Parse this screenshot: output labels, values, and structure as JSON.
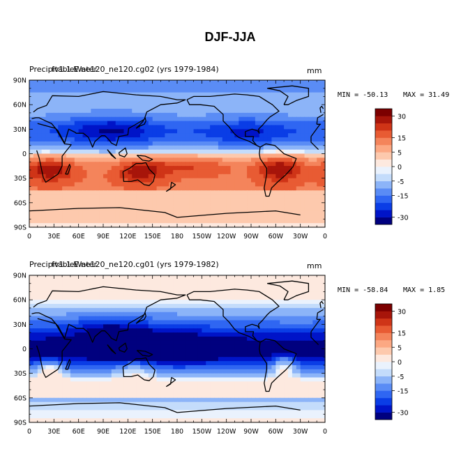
{
  "figure_title": "DJF-JJA",
  "colors": {
    "frame": "#000000",
    "land_outline": "#000000",
    "palette": [
      "#00007f",
      "#0014c8",
      "#0a3de6",
      "#2f66f2",
      "#5a8cf5",
      "#8cb4f8",
      "#c4dcfb",
      "#eaf2fd",
      "#fde9df",
      "#fdc9ad",
      "#fca883",
      "#f4845b",
      "#e85b33",
      "#cf3417",
      "#a7150a",
      "#7c0000"
    ]
  },
  "chart_data": [
    {
      "type": "heatmap",
      "title": "PrecipitableWater",
      "title_overlay": "fv1.1.E.ne120_ne120.cg02 (yrs 1979-1984)",
      "units": "mm",
      "min_label": "MIN = -50.13",
      "max_label": "MAX =  31.49",
      "min_value": -50.13,
      "max_value": 31.49,
      "x_axis": {
        "range": [
          0,
          360
        ],
        "ticks": [
          "0",
          "30E",
          "60E",
          "90E",
          "120E",
          "150E",
          "180",
          "150W",
          "120W",
          "90W",
          "60W",
          "30W",
          "0"
        ]
      },
      "y_axis": {
        "range": [
          -90,
          90
        ],
        "ticks": [
          "90N",
          "60N",
          "30N",
          "0",
          "30S",
          "60S",
          "90S"
        ]
      },
      "colorbar": {
        "levels": [
          -35,
          -30,
          -25,
          -20,
          -15,
          -10,
          -5,
          -2,
          0,
          2,
          5,
          10,
          15,
          20,
          25,
          30,
          35
        ],
        "labels": [
          "30",
          "15",
          "5",
          "0",
          "-5",
          "-15",
          "-30"
        ]
      }
    },
    {
      "type": "heatmap",
      "title": "PrecipitableWater",
      "title_overlay": "fv1.1.E.ne120_ne120.cg01 (yrs 1979-1982)",
      "units": "mm",
      "min_label": "MIN = -58.84",
      "max_label": "MAX =   1.85",
      "min_value": -58.84,
      "max_value": 1.85,
      "x_axis": {
        "range": [
          0,
          360
        ],
        "ticks": [
          "0",
          "30E",
          "60E",
          "90E",
          "120E",
          "150E",
          "180",
          "150W",
          "120W",
          "90W",
          "60W",
          "30W",
          "0"
        ]
      },
      "y_axis": {
        "range": [
          -90,
          90
        ],
        "ticks": [
          "90N",
          "60N",
          "30N",
          "0",
          "30S",
          "60S",
          "90S"
        ]
      },
      "colorbar": {
        "levels": [
          -35,
          -30,
          -25,
          -20,
          -15,
          -10,
          -5,
          -2,
          0,
          2,
          5,
          10,
          15,
          20,
          25,
          30,
          35
        ],
        "labels": [
          "30",
          "15",
          "5",
          "0",
          "-5",
          "-15",
          "-30"
        ]
      }
    }
  ]
}
